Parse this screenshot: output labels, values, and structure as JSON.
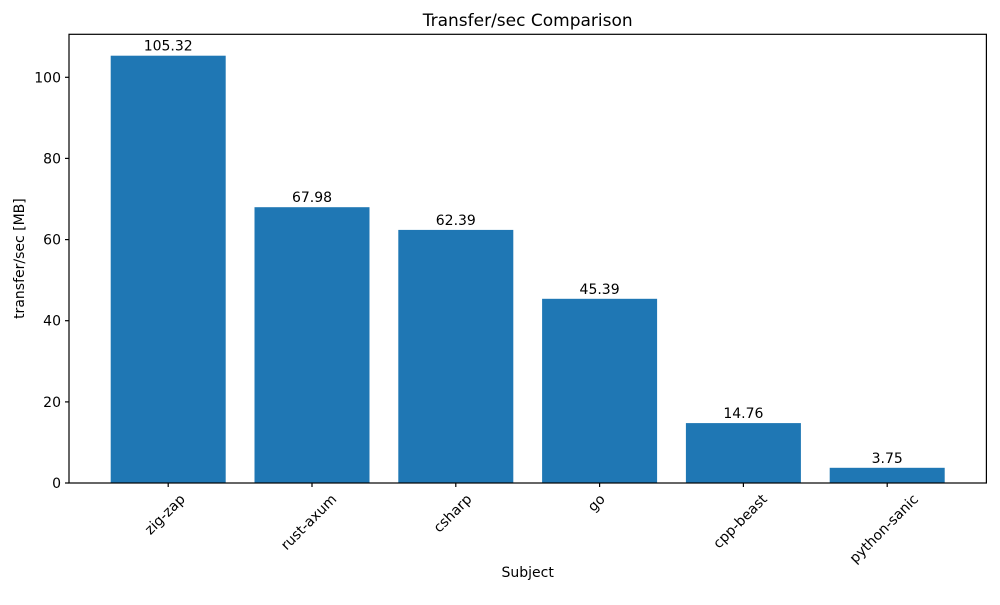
{
  "chart_data": {
    "type": "bar",
    "title": "Transfer/sec Comparison",
    "xlabel": "Subject",
    "ylabel": "transfer/sec [MB]",
    "categories": [
      "zig-zap",
      "rust-axum",
      "csharp",
      "go",
      "cpp-beast",
      "python-sanic"
    ],
    "values": [
      105.32,
      67.98,
      62.39,
      45.39,
      14.76,
      3.75
    ],
    "bar_labels": [
      "105.32",
      "67.98",
      "62.39",
      "45.39",
      "14.76",
      "3.75"
    ],
    "yticks": [
      "0",
      "20",
      "40",
      "60",
      "80",
      "100"
    ],
    "ylim": [
      0,
      110.59
    ],
    "x_tick_rotation": 45,
    "grid": false,
    "legend": "none",
    "bar_color": "#1f77b4",
    "text_color": "#000000",
    "spine_color": "#000000",
    "background_color": "#ffffff"
  }
}
